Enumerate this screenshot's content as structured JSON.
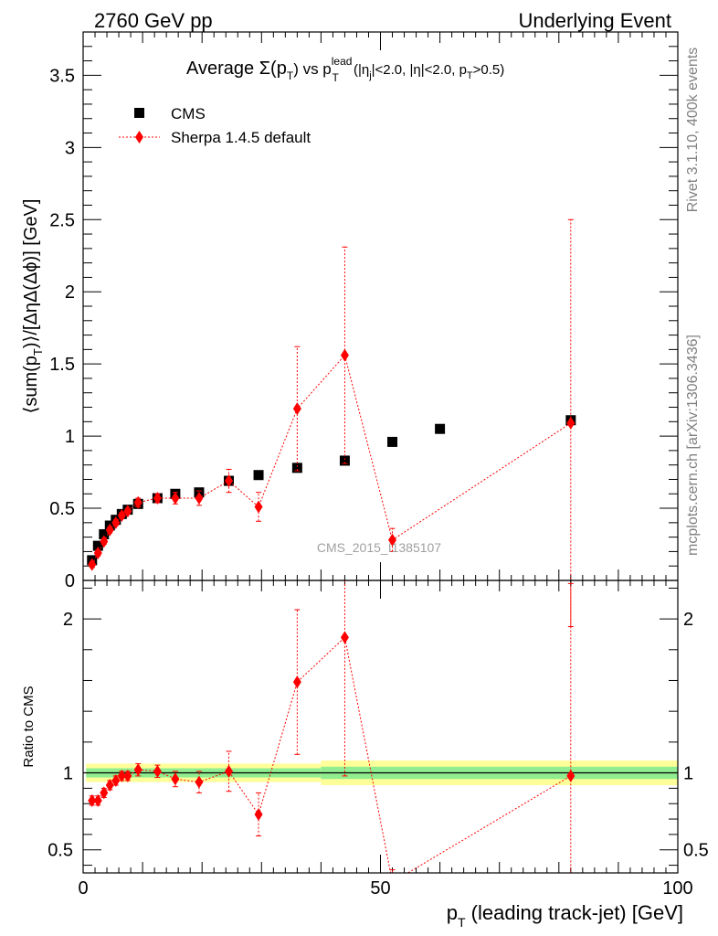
{
  "header": {
    "left": "2760 GeV pp",
    "right": "Underlying Event"
  },
  "side_labels": {
    "rivet": "Rivet 3.1.10,  400k events",
    "mcplots": "mcplots.cern.ch [arXiv:1306.3436]"
  },
  "chart_data": [
    {
      "type": "scatter",
      "title_parts": {
        "a": "Average ",
        "b": "Σ(p",
        "c": "T",
        "d": ") vs p",
        "e": "lead",
        "f": "T",
        "g": " (|η",
        "h": "j",
        "i": "|<2.0, |η|<2.0, p",
        "j": "T",
        "k": ">0.5)"
      },
      "ylabel_parts": {
        "a": "⟨sum(p",
        "b": "T",
        "c": ")⟩/[ΔηΔ(Δϕ)] [GeV]"
      },
      "watermark": "CMS_2015_I1385107",
      "xlim": [
        0,
        100
      ],
      "ylim": [
        0,
        3.8
      ],
      "yticks": [
        0,
        0.5,
        1,
        1.5,
        2,
        2.5,
        3,
        3.5
      ],
      "ytick_labels": [
        "0",
        "0.5",
        "1",
        "1.5",
        "2",
        "2.5",
        "3",
        "3.5"
      ],
      "legend_position": "top-left",
      "series": [
        {
          "name": "CMS",
          "color": "#000000",
          "marker": "square",
          "points": [
            {
              "x": 1.5,
              "y": 0.14
            },
            {
              "x": 2.5,
              "y": 0.24
            },
            {
              "x": 3.5,
              "y": 0.32
            },
            {
              "x": 4.5,
              "y": 0.38
            },
            {
              "x": 5.5,
              "y": 0.42
            },
            {
              "x": 6.5,
              "y": 0.46
            },
            {
              "x": 7.5,
              "y": 0.49
            },
            {
              "x": 9.25,
              "y": 0.53
            },
            {
              "x": 12.5,
              "y": 0.57
            },
            {
              "x": 15.5,
              "y": 0.6
            },
            {
              "x": 19.5,
              "y": 0.61
            },
            {
              "x": 24.5,
              "y": 0.69
            },
            {
              "x": 29.5,
              "y": 0.73
            },
            {
              "x": 36,
              "y": 0.78
            },
            {
              "x": 44,
              "y": 0.83
            },
            {
              "x": 52,
              "y": 0.96
            },
            {
              "x": 60,
              "y": 1.05
            },
            {
              "x": 82,
              "y": 1.11
            }
          ]
        },
        {
          "name": "Sherpa 1.4.5 default",
          "color": "#ff0000",
          "marker": "diamond",
          "points": [
            {
              "x": 1.5,
              "y": 0.11,
              "err": 0.02
            },
            {
              "x": 2.5,
              "y": 0.19,
              "err": 0.02
            },
            {
              "x": 3.5,
              "y": 0.27,
              "err": 0.02
            },
            {
              "x": 4.5,
              "y": 0.35,
              "err": 0.02
            },
            {
              "x": 5.5,
              "y": 0.4,
              "err": 0.02
            },
            {
              "x": 6.5,
              "y": 0.45,
              "err": 0.02
            },
            {
              "x": 7.5,
              "y": 0.48,
              "err": 0.02
            },
            {
              "x": 9.25,
              "y": 0.54,
              "err": 0.03
            },
            {
              "x": 12.5,
              "y": 0.57,
              "err": 0.03
            },
            {
              "x": 15.5,
              "y": 0.57,
              "err": 0.04
            },
            {
              "x": 19.5,
              "y": 0.57,
              "err": 0.05
            },
            {
              "x": 24.5,
              "y": 0.69,
              "err": 0.08
            },
            {
              "x": 29.5,
              "y": 0.51,
              "err": 0.1
            },
            {
              "x": 36,
              "y": 1.19,
              "err": 0.43
            },
            {
              "x": 44,
              "y": 1.56,
              "err": 0.75
            },
            {
              "x": 52,
              "y": 0.28,
              "err": 0.08
            },
            {
              "x": 82,
              "y": 1.09,
              "err": 1.41
            }
          ]
        }
      ]
    },
    {
      "type": "scatter",
      "ylabel": "Ratio to CMS",
      "xlabel_parts": {
        "a": "p",
        "b": "T",
        "c": " (leading track-jet) [GeV]"
      },
      "xlim": [
        0,
        100
      ],
      "ylim": [
        0.35,
        2.25
      ],
      "xticks": [
        0,
        50,
        100
      ],
      "xtick_labels": [
        "0",
        "50",
        "100"
      ],
      "yticks": [
        0.5,
        1,
        2
      ],
      "ytick_labels": [
        "0.5",
        "1",
        "2"
      ],
      "reference_line": 1,
      "bands": {
        "stat_color": "#90ee90",
        "total_color": "#ffff99",
        "segments": [
          {
            "x0": 0.5,
            "x1": 40,
            "stat": 0.03,
            "total": 0.06
          },
          {
            "x0": 40,
            "x1": 100,
            "stat": 0.04,
            "total": 0.08
          }
        ]
      },
      "series": [
        {
          "name": "Sherpa 1.4.5 default",
          "color": "#ff0000",
          "marker": "diamond",
          "points": [
            {
              "x": 1.5,
              "y": 0.82,
              "err": 0.03
            },
            {
              "x": 2.5,
              "y": 0.82,
              "err": 0.03
            },
            {
              "x": 3.5,
              "y": 0.87,
              "err": 0.03
            },
            {
              "x": 4.5,
              "y": 0.92,
              "err": 0.03
            },
            {
              "x": 5.5,
              "y": 0.95,
              "err": 0.03
            },
            {
              "x": 6.5,
              "y": 0.98,
              "err": 0.03
            },
            {
              "x": 7.5,
              "y": 0.98,
              "err": 0.03
            },
            {
              "x": 9.25,
              "y": 1.02,
              "err": 0.04
            },
            {
              "x": 12.5,
              "y": 1.01,
              "err": 0.04
            },
            {
              "x": 15.5,
              "y": 0.96,
              "err": 0.05
            },
            {
              "x": 19.5,
              "y": 0.94,
              "err": 0.07
            },
            {
              "x": 24.5,
              "y": 1.01,
              "err": 0.13
            },
            {
              "x": 29.5,
              "y": 0.73,
              "err": 0.14
            },
            {
              "x": 36,
              "y": 1.59,
              "err": 0.47
            },
            {
              "x": 44,
              "y": 1.88,
              "err": 0.9
            },
            {
              "x": 52,
              "y": 0.29,
              "err": 0.08
            },
            {
              "x": 82,
              "y": 0.98,
              "err": 1.25
            }
          ]
        }
      ]
    }
  ]
}
